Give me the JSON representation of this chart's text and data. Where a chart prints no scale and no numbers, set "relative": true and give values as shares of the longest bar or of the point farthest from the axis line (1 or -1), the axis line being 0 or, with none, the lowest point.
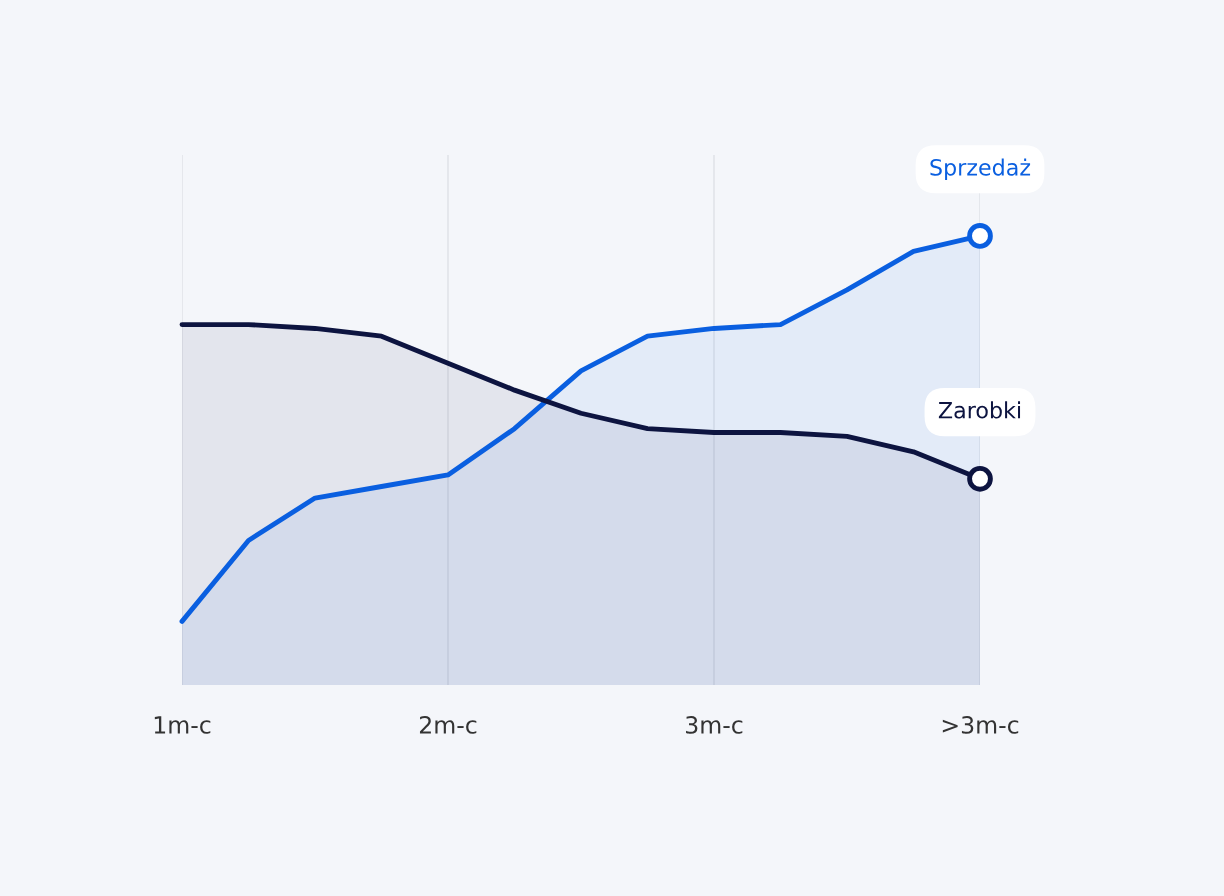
{
  "chart_data": {
    "type": "area",
    "relative": true,
    "grid": "x",
    "legend": false,
    "categories": [
      "1m-c",
      null,
      null,
      null,
      "2m-c",
      null,
      null,
      null,
      "3m-c",
      null,
      null,
      null,
      ">3m-c"
    ],
    "series": [
      {
        "name": "Sprzedaż",
        "color": "#0a5fe0",
        "values": [
          0,
          0.21,
          0.32,
          0.35,
          0.38,
          0.5,
          0.65,
          0.74,
          0.76,
          0.77,
          0.86,
          0.96,
          1.0
        ]
      },
      {
        "name": "Zarobki",
        "color": "#0d1440",
        "values": [
          0.77,
          0.77,
          0.76,
          0.74,
          0.67,
          0.6,
          0.54,
          0.5,
          0.49,
          0.49,
          0.48,
          0.44,
          0.37
        ]
      }
    ]
  }
}
